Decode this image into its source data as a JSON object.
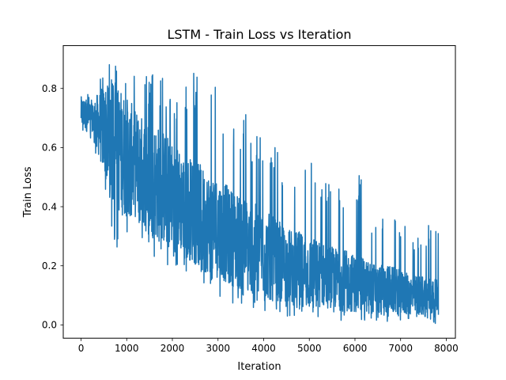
{
  "chart_data": {
    "type": "line",
    "title": "LSTM - Train Loss vs Iteration",
    "xlabel": "Iteration",
    "ylabel": "Train Loss",
    "xlim": [
      -390,
      8200
    ],
    "ylim": [
      -0.045,
      0.945
    ],
    "xticks": [
      0,
      1000,
      2000,
      3000,
      4000,
      5000,
      6000,
      7000,
      8000
    ],
    "yticks": [
      0.0,
      0.2,
      0.4,
      0.6,
      0.8
    ],
    "xtick_labels": [
      "0",
      "1000",
      "2000",
      "3000",
      "4000",
      "5000",
      "6000",
      "7000",
      "8000"
    ],
    "ytick_labels": [
      "0.0",
      "0.2",
      "0.4",
      "0.6",
      "0.8"
    ],
    "grid": false,
    "legend": null,
    "series": [
      {
        "color": "#1f77b4",
        "x": [
          0,
          250,
          500,
          750,
          1000,
          1250,
          1500,
          1750,
          2000,
          2250,
          2500,
          2750,
          3000,
          3250,
          3500,
          3750,
          4000,
          4250,
          4500,
          4750,
          5000,
          5250,
          5500,
          5750,
          6000,
          6250,
          6500,
          6750,
          7000,
          7250,
          7500,
          7750,
          7830
        ],
        "upper": [
          0.85,
          0.76,
          0.9,
          0.89,
          0.85,
          0.89,
          0.86,
          0.84,
          0.84,
          0.8,
          0.87,
          0.86,
          0.79,
          0.73,
          0.76,
          0.68,
          0.64,
          0.6,
          0.56,
          0.56,
          0.73,
          0.52,
          0.5,
          0.45,
          0.58,
          0.42,
          0.38,
          0.4,
          0.36,
          0.3,
          0.3,
          0.46,
          0.3
        ],
        "lower": [
          0.65,
          0.62,
          0.46,
          0.25,
          0.3,
          0.3,
          0.25,
          0.2,
          0.2,
          0.18,
          0.14,
          0.12,
          0.1,
          0.08,
          0.06,
          0.05,
          0.04,
          0.03,
          0.03,
          0.02,
          0.02,
          0.02,
          0.02,
          0.01,
          0.01,
          0.01,
          0.01,
          0.01,
          0.01,
          0.01,
          0.005,
          0.005,
          0.005
        ],
        "typical": [
          0.72,
          0.7,
          0.66,
          0.6,
          0.57,
          0.54,
          0.5,
          0.47,
          0.44,
          0.41,
          0.38,
          0.35,
          0.33,
          0.3,
          0.28,
          0.26,
          0.24,
          0.22,
          0.2,
          0.19,
          0.18,
          0.17,
          0.16,
          0.15,
          0.14,
          0.13,
          0.12,
          0.12,
          0.11,
          0.1,
          0.1,
          0.09,
          0.09
        ]
      }
    ]
  }
}
